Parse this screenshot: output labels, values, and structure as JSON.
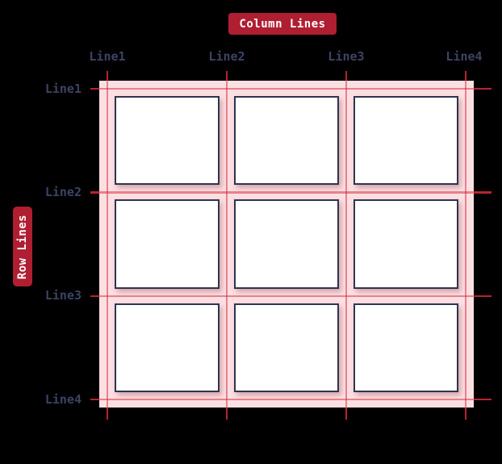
{
  "diagram": {
    "column_badge": "Column Lines",
    "row_badge": "Row Lines"
  },
  "column_lines": [
    "Line1",
    "Line2",
    "Line3",
    "Line4"
  ],
  "row_lines": [
    "Line1",
    "Line2",
    "Line3",
    "Line4"
  ],
  "grid": {
    "rows": 3,
    "columns": 3,
    "cell_count": 9
  },
  "colors": {
    "background": "#000000",
    "badge_red": "#b01e31",
    "badge_text": "#ffffff",
    "label_text": "#3d4363",
    "container_pink": "#fcdfe2",
    "grid_line_inner": "rgba(210,30,45,0.48)",
    "grid_line_outer": "#b8232f",
    "cell_background": "#ffffff",
    "cell_border": "#2f344e"
  }
}
